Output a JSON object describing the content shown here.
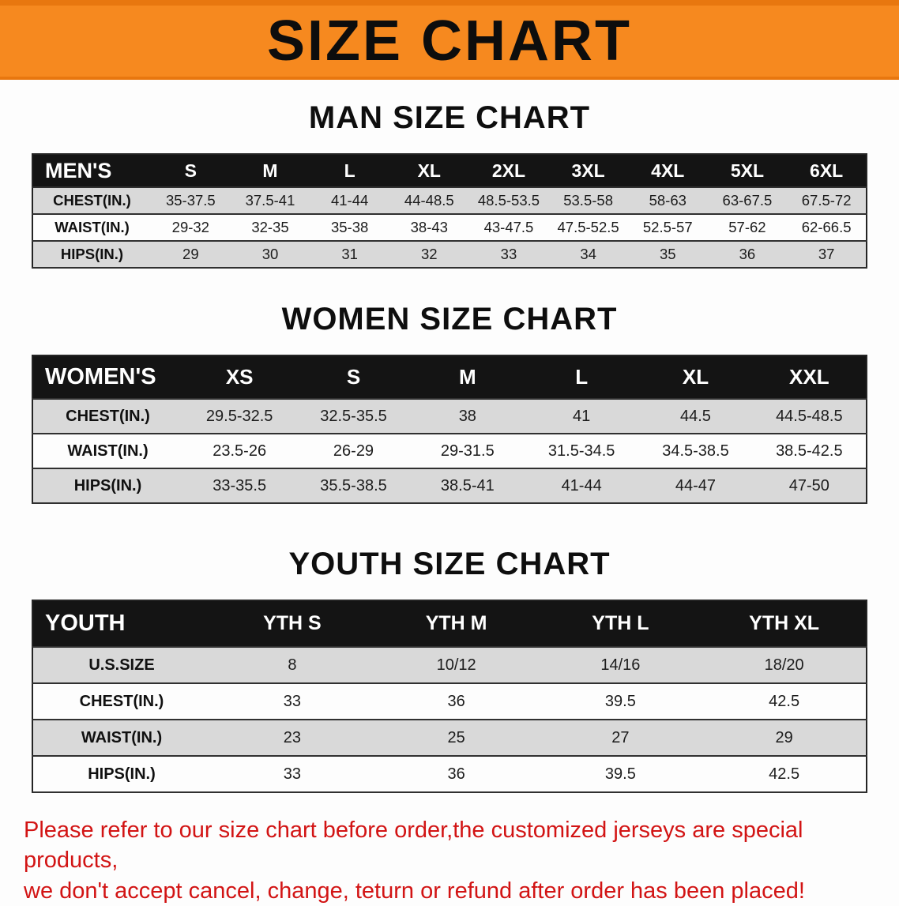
{
  "banner": {
    "title": "SIZE CHART"
  },
  "sections": [
    {
      "heading": "MAN SIZE CHART",
      "table": {
        "label": "MEN'S",
        "columns": [
          "S",
          "M",
          "L",
          "XL",
          "2XL",
          "3XL",
          "4XL",
          "5XL",
          "6XL"
        ],
        "rows": [
          {
            "label": "CHEST(IN.)",
            "values": [
              "35-37.5",
              "37.5-41",
              "41-44",
              "44-48.5",
              "48.5-53.5",
              "53.5-58",
              "58-63",
              "63-67.5",
              "67.5-72"
            ]
          },
          {
            "label": "WAIST(IN.)",
            "values": [
              "29-32",
              "32-35",
              "35-38",
              "38-43",
              "43-47.5",
              "47.5-52.5",
              "52.5-57",
              "57-62",
              "62-66.5"
            ]
          },
          {
            "label": "HIPS(IN.)",
            "values": [
              "29",
              "30",
              "31",
              "32",
              "33",
              "34",
              "35",
              "36",
              "37"
            ]
          }
        ]
      }
    },
    {
      "heading": "WOMEN SIZE CHART",
      "table": {
        "label": "WOMEN'S",
        "columns": [
          "XS",
          "S",
          "M",
          "L",
          "XL",
          "XXL"
        ],
        "rows": [
          {
            "label": "CHEST(IN.)",
            "values": [
              "29.5-32.5",
              "32.5-35.5",
              "38",
              "41",
              "44.5",
              "44.5-48.5"
            ]
          },
          {
            "label": "WAIST(IN.)",
            "values": [
              "23.5-26",
              "26-29",
              "29-31.5",
              "31.5-34.5",
              "34.5-38.5",
              "38.5-42.5"
            ]
          },
          {
            "label": "HIPS(IN.)",
            "values": [
              "33-35.5",
              "35.5-38.5",
              "38.5-41",
              "41-44",
              "44-47",
              "47-50"
            ]
          }
        ]
      }
    },
    {
      "heading": "YOUTH SIZE CHART",
      "table": {
        "label": "YOUTH",
        "columns": [
          "YTH S",
          "YTH M",
          "YTH L",
          "YTH XL"
        ],
        "rows": [
          {
            "label": "U.S.SIZE",
            "values": [
              "8",
              "10/12",
              "14/16",
              "18/20"
            ]
          },
          {
            "label": "CHEST(IN.)",
            "values": [
              "33",
              "36",
              "39.5",
              "42.5"
            ]
          },
          {
            "label": "WAIST(IN.)",
            "values": [
              "23",
              "25",
              "27",
              "29"
            ]
          },
          {
            "label": "HIPS(IN.)",
            "values": [
              "33",
              "36",
              "39.5",
              "42.5"
            ]
          }
        ]
      }
    }
  ],
  "footer": {
    "line1": "Please refer to our size chart before order,the customized jerseys are special products,",
    "line2": "we don't accept cancel, change, teturn or refund after order has been placed!"
  },
  "colors": {
    "accent-orange": "#f6891f",
    "accent-orange-dark": "#e8770f",
    "table-header-bg": "#141414",
    "row-stripe": "#d9d9d9",
    "note-red": "#d21414"
  }
}
